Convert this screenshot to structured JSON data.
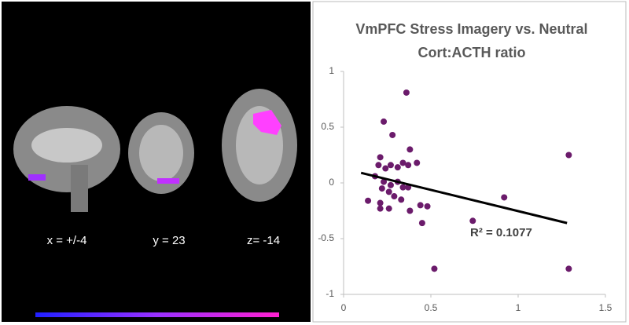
{
  "brain_labels": [
    "x = +/-4",
    "y = 23",
    "z= -14"
  ],
  "chart_data": {
    "type": "scatter",
    "title": "VmPFC Stress Imagery vs. Neutral",
    "subtitle": "Cort:ACTH ratio",
    "annotation": "R² = 0.1077",
    "color": "#6b1b6b",
    "trendline": {
      "x": [
        0.1,
        1.28
      ],
      "y": [
        0.09,
        -0.36
      ],
      "color": "#000000"
    },
    "x": [
      0.14,
      0.23,
      0.28,
      0.36,
      0.21,
      0.2,
      0.24,
      0.27,
      0.31,
      0.34,
      0.37,
      0.42,
      0.38,
      0.18,
      0.23,
      0.27,
      0.31,
      0.34,
      0.37,
      0.22,
      0.26,
      0.29,
      0.21,
      0.26,
      0.21,
      0.33,
      0.38,
      0.44,
      0.45,
      0.48,
      0.52,
      0.74,
      0.92,
      1.29,
      1.29
    ],
    "values": [
      -0.16,
      0.55,
      0.43,
      0.81,
      0.23,
      0.16,
      0.13,
      0.16,
      0.14,
      0.18,
      0.16,
      0.18,
      0.3,
      0.06,
      0.01,
      -0.02,
      0.01,
      -0.04,
      -0.04,
      -0.05,
      -0.08,
      -0.12,
      -0.18,
      -0.23,
      -0.23,
      -0.15,
      -0.25,
      -0.2,
      -0.36,
      -0.21,
      -0.77,
      -0.34,
      -0.13,
      0.25,
      -0.77
    ],
    "xlim": [
      0,
      1.5
    ],
    "xticks": [
      0,
      0.5,
      1,
      1.5
    ],
    "ylim": [
      -1,
      1
    ],
    "yticks": [
      -1,
      -0.5,
      0,
      0.5,
      1
    ],
    "grid": false
  }
}
